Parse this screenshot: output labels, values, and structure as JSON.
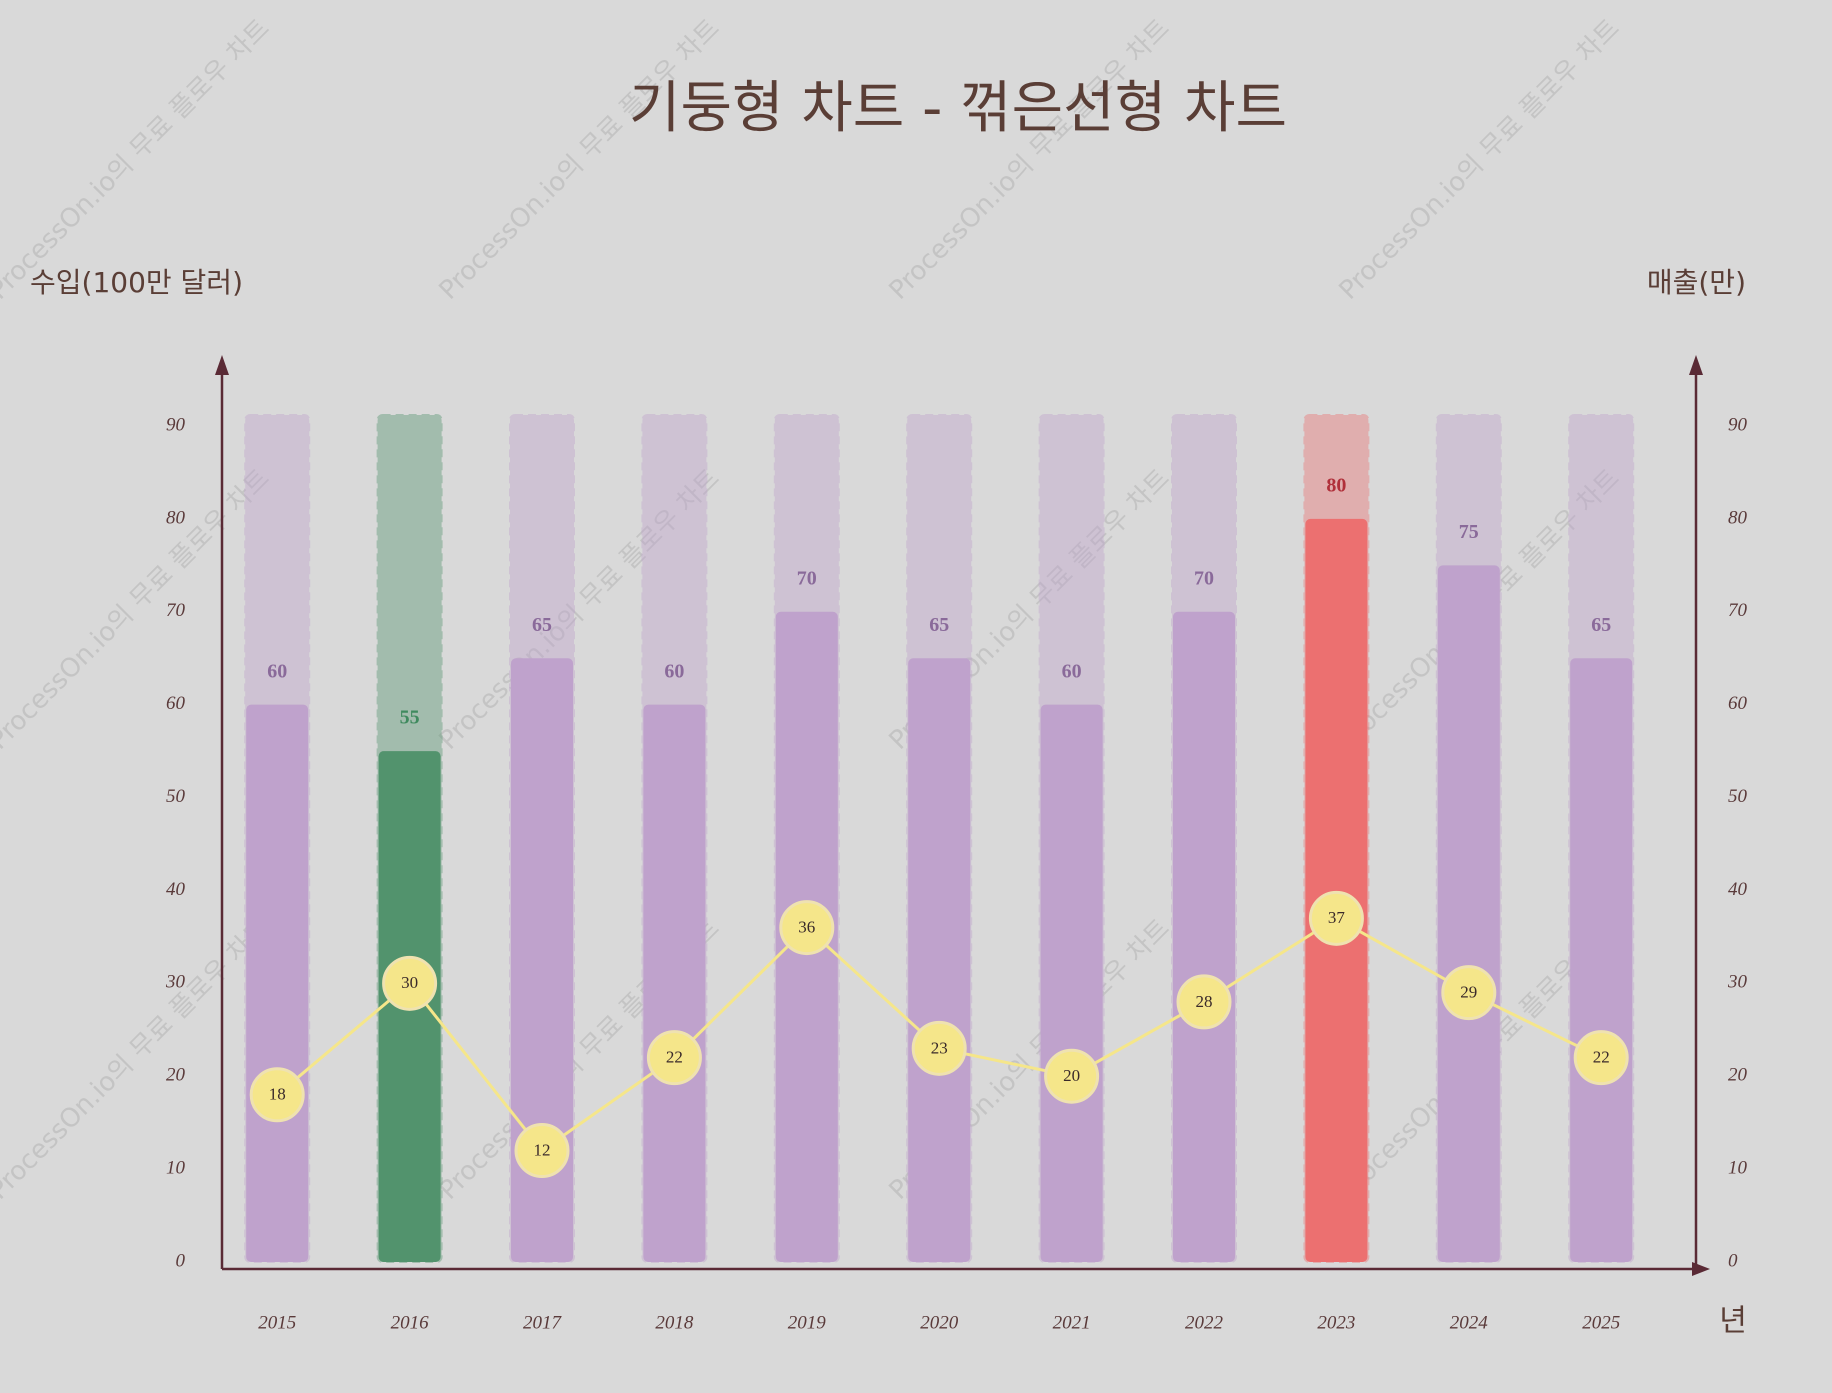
{
  "chart_data": {
    "type": "bar",
    "title": "기둥형 차트 - 꺾은선형 차트",
    "watermark": "ProcessOn.io의 무료 플로우 차트",
    "y_label": "수입(100만 달러)",
    "y2_label": "매출(만)",
    "x_label": "년",
    "categories": [
      "2015",
      "2016",
      "2017",
      "2018",
      "2019",
      "2020",
      "2021",
      "2022",
      "2023",
      "2024",
      "2025"
    ],
    "series": [
      {
        "type": "bar",
        "values": [
          60,
          55,
          65,
          60,
          70,
          65,
          60,
          70,
          80,
          75,
          65
        ],
        "colors": [
          "#bfa2cc",
          "#52936d",
          "#bfa2cc",
          "#bfa2cc",
          "#bfa2cc",
          "#bfa2cc",
          "#bfa2cc",
          "#bfa2cc",
          "#ec7070",
          "#bfa2cc",
          "#bfa2cc"
        ],
        "label_colors": [
          "#8a6a9a",
          "#3f8a5e",
          "#8a6a9a",
          "#8a6a9a",
          "#8a6a9a",
          "#8a6a9a",
          "#8a6a9a",
          "#8a6a9a",
          "#b0303a",
          "#8a6a9a",
          "#8a6a9a"
        ]
      },
      {
        "type": "line",
        "axis": "y2",
        "color": "#f5e68a",
        "values": [
          18,
          30,
          12,
          22,
          36,
          23,
          20,
          28,
          37,
          29,
          22
        ]
      }
    ],
    "ylim": [
      0,
      97
    ],
    "yticks": [
      0,
      10,
      20,
      30,
      40,
      50,
      60,
      70,
      80,
      90
    ],
    "y2lim": [
      0,
      97
    ],
    "y2ticks": [
      0,
      10,
      20,
      30,
      40,
      50,
      60,
      70,
      80,
      90
    ]
  }
}
